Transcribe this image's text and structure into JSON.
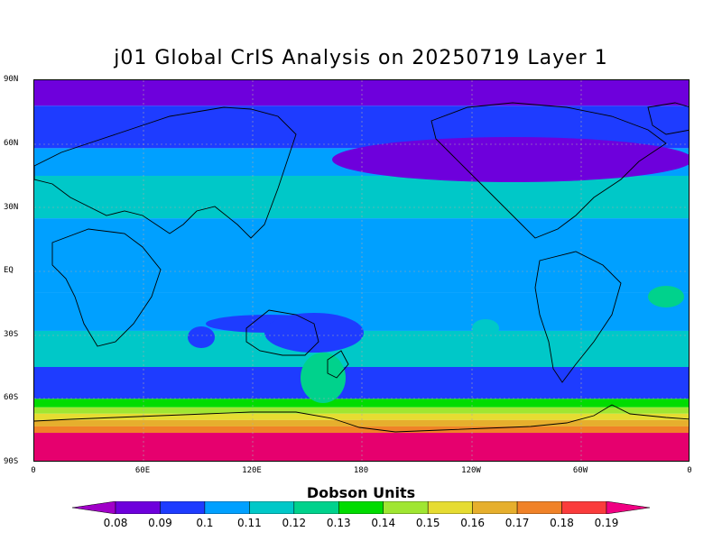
{
  "title": "j01 Global CrIS Analysis on 20250719 Layer 1",
  "lat_labels": [
    "90N",
    "60N",
    "30N",
    "EQ",
    "30S",
    "60S",
    "90S"
  ],
  "lon_labels": [
    "0",
    "60E",
    "120E",
    "180",
    "120W",
    "60W",
    "0"
  ],
  "colorbar": {
    "title": "Dobson Units",
    "labels": [
      "0.08",
      "0.09",
      "0.1",
      "0.11",
      "0.12",
      "0.13",
      "0.14",
      "0.15",
      "0.16",
      "0.17",
      "0.18",
      "0.19"
    ],
    "colors": [
      "#a000c8",
      "#6e00dc",
      "#1e3cff",
      "#00a0ff",
      "#00c8c8",
      "#00d28c",
      "#00dc00",
      "#a0e632",
      "#e6dc32",
      "#e6af2d",
      "#f08228",
      "#fa3c3c",
      "#f00082"
    ]
  },
  "map": {
    "bands": [
      {
        "lat_top": 90,
        "lat_bottom": 78,
        "color": "#6e00dc"
      },
      {
        "lat_top": 78,
        "lat_bottom": 58,
        "color": "#1e3cff"
      },
      {
        "lat_top": 58,
        "lat_bottom": 45,
        "color": "#00a0ff"
      },
      {
        "lat_top": 45,
        "lat_bottom": 25,
        "color": "#00c8c8"
      },
      {
        "lat_top": 25,
        "lat_bottom": -10,
        "color": "#00a0ff"
      },
      {
        "lat_top": -10,
        "lat_bottom": -28,
        "color": "#00a0ff"
      },
      {
        "lat_top": -28,
        "lat_bottom": -45,
        "color": "#00c8c8"
      },
      {
        "lat_top": -45,
        "lat_bottom": -60,
        "color": "#1e3cff"
      },
      {
        "lat_top": -60,
        "lat_bottom": -64,
        "color": "#00dc00"
      },
      {
        "lat_top": -64,
        "lat_bottom": -67,
        "color": "#a0e632"
      },
      {
        "lat_top": -67,
        "lat_bottom": -70,
        "color": "#e6dc32"
      },
      {
        "lat_top": -70,
        "lat_bottom": -73,
        "color": "#e6af2d"
      },
      {
        "lat_top": -73,
        "lat_bottom": -76,
        "color": "#f08228"
      },
      {
        "lat_top": -76,
        "lat_bottom": -90,
        "color": "#e6006e"
      }
    ]
  }
}
